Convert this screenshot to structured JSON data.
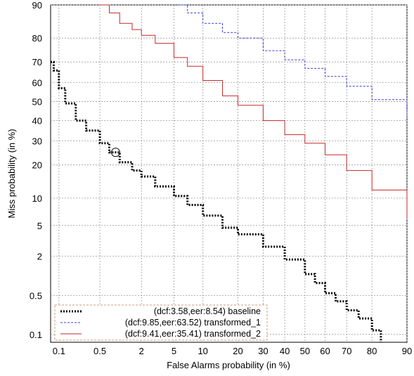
{
  "chart_data": {
    "type": "line",
    "scale": "normal-deviate (DET) on both axes",
    "xlabel": "False Alarms probability (in %)",
    "ylabel": "Miss probability (in %)",
    "xlim": [
      0.07,
      90
    ],
    "ylim": [
      0.07,
      90
    ],
    "x_ticks": [
      0.1,
      0.5,
      2,
      5,
      10,
      20,
      30,
      40,
      50,
      60,
      70,
      80,
      90
    ],
    "x_tick_labels": [
      "0.1",
      "0.5",
      "2",
      "5",
      "10",
      "20",
      "30",
      "40",
      "50",
      "60",
      "70",
      "80",
      "90"
    ],
    "y_ticks": [
      0.1,
      0.5,
      2,
      5,
      10,
      20,
      30,
      40,
      50,
      60,
      70,
      80,
      90
    ],
    "y_tick_labels": [
      "0.1",
      "0.5",
      "2",
      "5",
      "10",
      "20",
      "30",
      "40",
      "50",
      "60",
      "70",
      "80",
      "90"
    ],
    "grid": true,
    "legend_position": "bottom-left",
    "series": [
      {
        "name": "(dcf:3.58,eer:8.54)  baseline",
        "color": "#000000",
        "style": "dotted-thick",
        "x": [
          0.07,
          0.08,
          0.1,
          0.13,
          0.2,
          0.3,
          0.5,
          0.7,
          1,
          1.5,
          2,
          3,
          5,
          7,
          10,
          15,
          20,
          30,
          40,
          50,
          55,
          60,
          65,
          70,
          75,
          80,
          83
        ],
        "y": [
          70,
          66,
          57,
          49,
          40,
          35,
          29,
          25,
          21,
          18,
          16,
          13,
          10.5,
          8.5,
          6.5,
          4.7,
          3.9,
          2.7,
          1.8,
          1.1,
          0.8,
          0.55,
          0.4,
          0.28,
          0.2,
          0.12,
          0.07
        ]
      },
      {
        "name": "(dcf:9.85,eer:63.52) transformed_1",
        "color": "#3a3ad8",
        "style": "dashed",
        "x": [
          5,
          7,
          10,
          15,
          20,
          30,
          40,
          50,
          60,
          70,
          80,
          90
        ],
        "y": [
          90,
          88,
          85,
          82,
          80,
          75,
          71,
          67,
          63,
          58,
          51,
          41
        ]
      },
      {
        "name": "(dcf:9.41,eer:35.41) transformed_2",
        "color": "#c62a2a",
        "style": "solid",
        "x": [
          0.5,
          0.7,
          1,
          1.5,
          2,
          3,
          5,
          7,
          10,
          15,
          20,
          30,
          40,
          50,
          60,
          70,
          80,
          90
        ],
        "y": [
          90,
          88,
          85,
          83,
          81,
          78,
          72,
          68,
          61,
          53,
          48,
          40,
          33,
          29,
          24,
          18,
          12,
          6
        ]
      }
    ],
    "annotations": [
      {
        "type": "circle-marker",
        "series": "(dcf:3.58,eer:8.54)  baseline",
        "x": 0.87,
        "y": 25
      }
    ]
  }
}
